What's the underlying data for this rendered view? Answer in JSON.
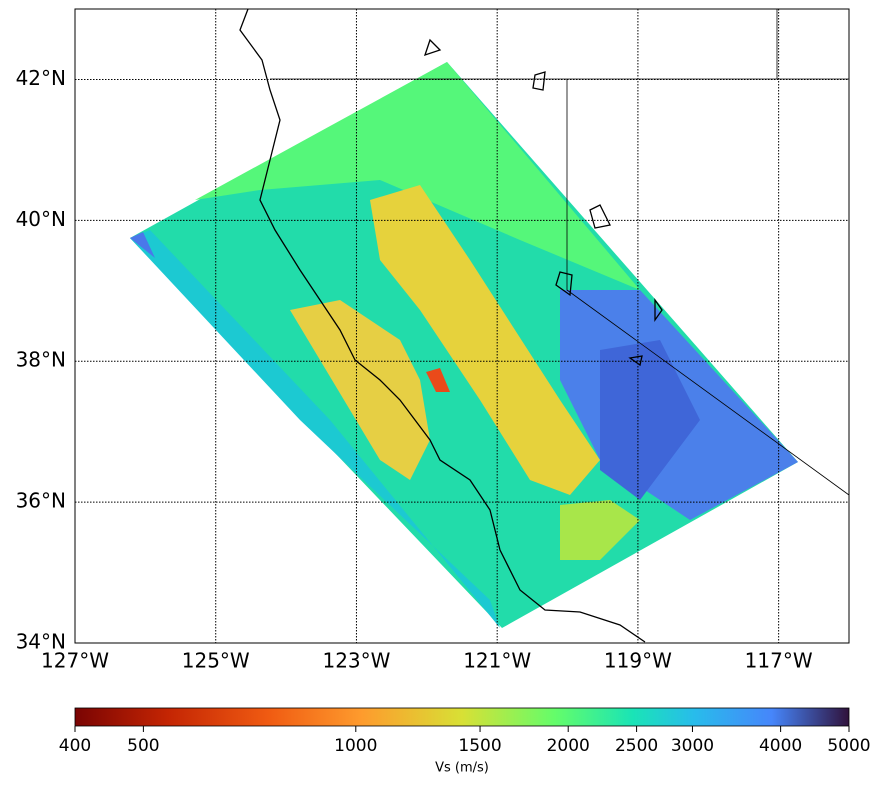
{
  "chart_data": {
    "type": "map",
    "xlim": [
      -127,
      -116
    ],
    "ylim": [
      34,
      43
    ],
    "xticks": [
      {
        "value": -127,
        "label": "127°W"
      },
      {
        "value": -125,
        "label": "125°W"
      },
      {
        "value": -123,
        "label": "123°W"
      },
      {
        "value": -121,
        "label": "121°W"
      },
      {
        "value": -119,
        "label": "119°W"
      },
      {
        "value": -117,
        "label": "117°W"
      }
    ],
    "yticks": [
      {
        "value": 34,
        "label": "34°N"
      },
      {
        "value": 36,
        "label": "36°N"
      },
      {
        "value": 38,
        "label": "38°N"
      },
      {
        "value": 40,
        "label": "40°N"
      },
      {
        "value": 42,
        "label": "42°N"
      }
    ],
    "grid": true,
    "colorbar": {
      "label": "Vs (m/s)",
      "log": true,
      "lim": [
        400,
        5000
      ],
      "ticks": [
        400,
        500,
        1000,
        1500,
        2000,
        2500,
        3000,
        4000,
        5000
      ]
    }
  }
}
